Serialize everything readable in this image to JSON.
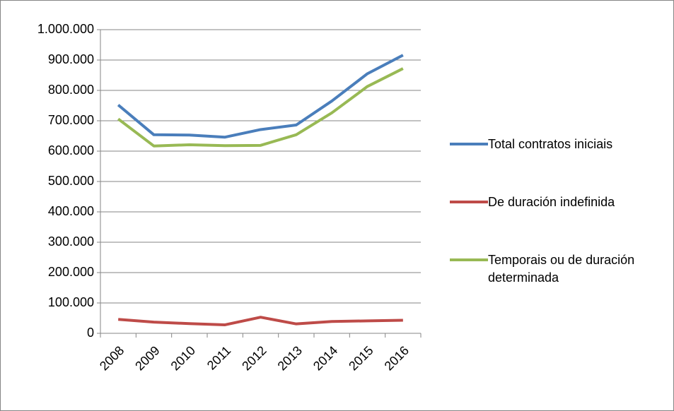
{
  "chart_data": {
    "type": "line",
    "categories": [
      "2008",
      "2009",
      "2010",
      "2011",
      "2012",
      "2013",
      "2014",
      "2015",
      "2016"
    ],
    "series": [
      {
        "name": "Total contratos iniciais",
        "color": "#4a7ebb",
        "values": [
          752000,
          654000,
          653000,
          646000,
          671000,
          686000,
          765000,
          855000,
          916000
        ]
      },
      {
        "name": "De duración indefinida",
        "color": "#be4b48",
        "values": [
          46000,
          37000,
          32000,
          28000,
          53000,
          31000,
          39000,
          41000,
          43000
        ]
      },
      {
        "name": "Temporais ou de duración determinada",
        "color": "#98b954",
        "values": [
          706000,
          617000,
          621000,
          618000,
          619000,
          654000,
          726000,
          813000,
          872000
        ]
      }
    ],
    "ylim": [
      0,
      1000000
    ],
    "yticks": [
      0,
      {
        "value": 100000,
        "label": "100.000"
      },
      {
        "value": 200000,
        "label": "200.000"
      },
      {
        "value": 300000,
        "label": "300.000"
      },
      {
        "value": 400000,
        "label": "400.000"
      },
      {
        "value": 500000,
        "label": "500.000"
      },
      {
        "value": 600000,
        "label": "600.000"
      },
      {
        "value": 700000,
        "label": "700.000"
      },
      {
        "value": 800000,
        "label": "800.000"
      },
      {
        "value": 900000,
        "label": "900.000"
      },
      {
        "value": 1000000,
        "label": "1.000.000"
      }
    ],
    "grid": true,
    "legend": "right"
  }
}
